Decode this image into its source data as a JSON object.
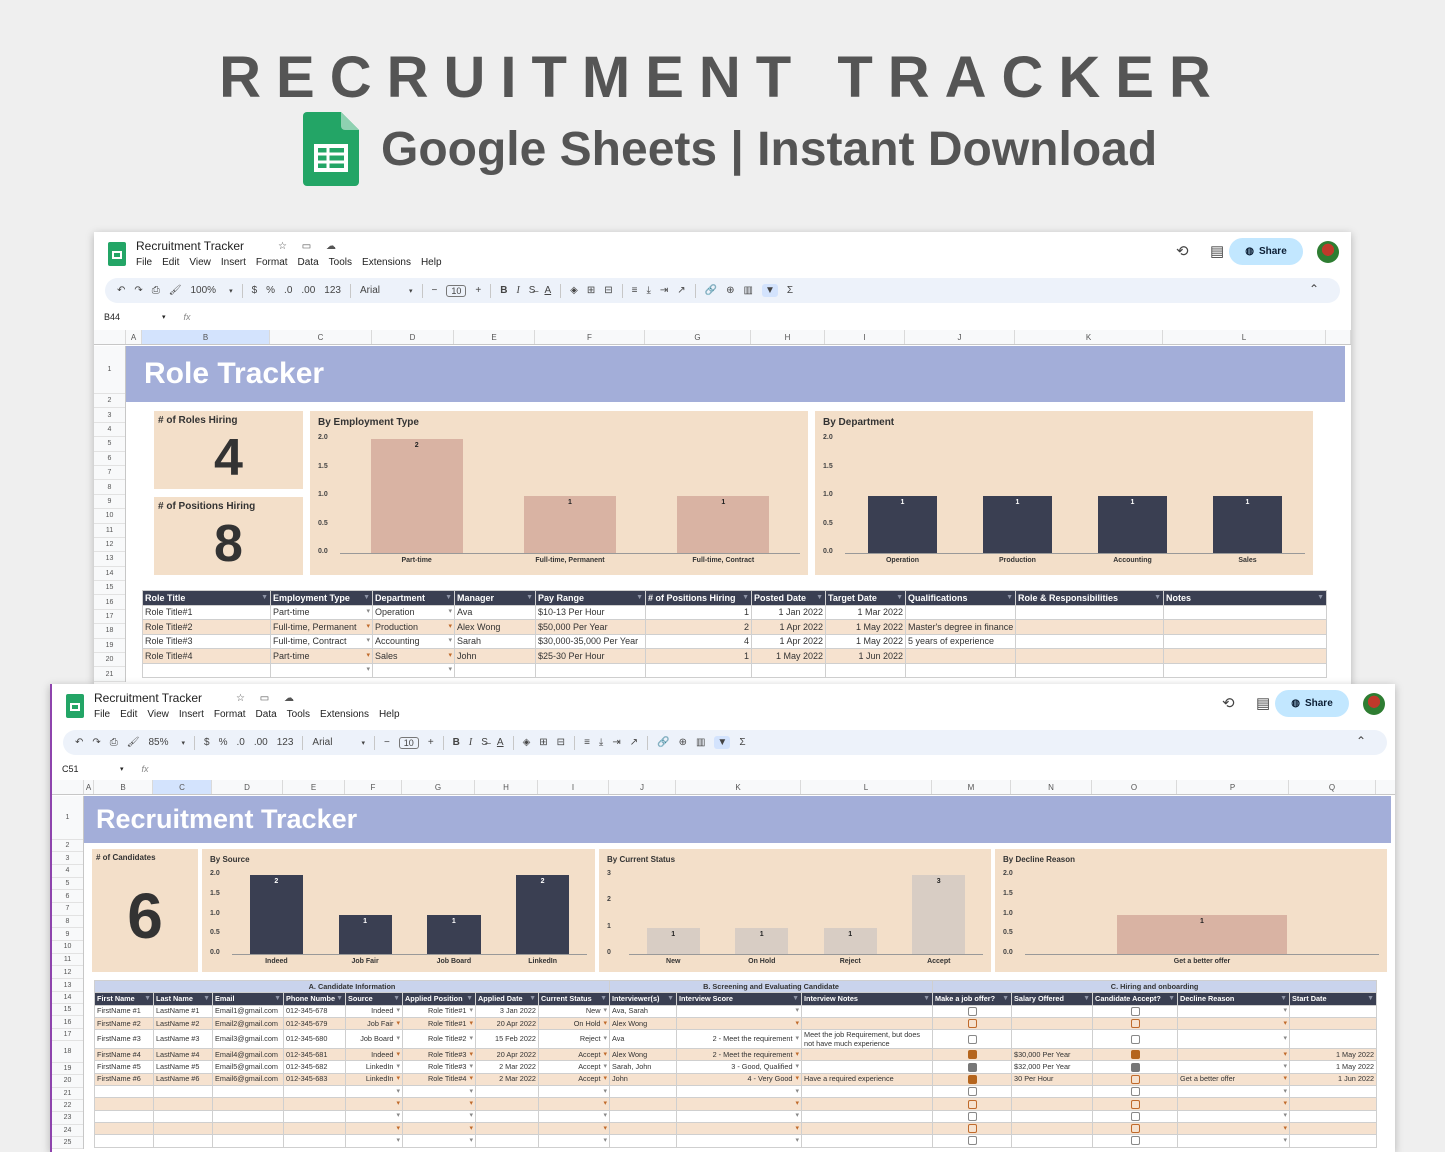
{
  "header": {
    "title": "RECRUITMENT TRACKER",
    "subtitle": "Google Sheets | Instant Download"
  },
  "colors": {
    "banner": "#a3aed9",
    "panel": "#f3dfc9",
    "header_row": "#3a3f52",
    "bar_dark": "#3a3f52",
    "bar_rose": "#d9b3a3",
    "bar_light": "#d8cdc4",
    "accent_check": "#b5651d"
  },
  "windows": [
    {
      "doc_title": "Recruitment Tracker",
      "menu": [
        "File",
        "Edit",
        "View",
        "Insert",
        "Format",
        "Data",
        "Tools",
        "Extensions",
        "Help"
      ],
      "share_label": "Share",
      "toolbar": {
        "zoom": "100%",
        "currency": "$",
        "percent": "%",
        "dec_less": ".0",
        "dec_more": ".00",
        "format": "123",
        "font": "Arial",
        "font_size": "10",
        "bold": "B",
        "italic": "I",
        "text_color": "A"
      },
      "cell_ref": "B44",
      "fx": "fx",
      "columns": [
        "A",
        "B",
        "C",
        "D",
        "E",
        "F",
        "G",
        "H",
        "I",
        "J",
        "K",
        "L"
      ],
      "sheet_title": "Role Tracker",
      "kpis": [
        {
          "label": "# of Roles Hiring",
          "value": "4"
        },
        {
          "label": "# of Positions Hiring",
          "value": "8"
        }
      ],
      "charts": [
        {
          "type": "bar",
          "title": "By Employment Type",
          "categories": [
            "Part-time",
            "Full-time, Permanent",
            "Full-time, Contract"
          ],
          "values": [
            2,
            1,
            1
          ],
          "ylim": [
            0,
            2
          ],
          "yticks": [
            "0.0",
            "0.5",
            "1.0",
            "1.5",
            "2.0"
          ],
          "color": "#d9b3a3"
        },
        {
          "type": "bar",
          "title": "By Department",
          "categories": [
            "Operation",
            "Production",
            "Accounting",
            "Sales"
          ],
          "values": [
            1,
            1,
            1,
            1
          ],
          "ylim": [
            0,
            2
          ],
          "yticks": [
            "0.0",
            "0.5",
            "1.0",
            "1.5",
            "2.0"
          ],
          "color": "#3a3f52"
        }
      ],
      "table": {
        "headers": [
          "Role Title",
          "Employment Type",
          "Department",
          "Manager",
          "Pay Range",
          "# of Positions Hiring",
          "Posted Date",
          "Target Date",
          "Qualifications",
          "Role & Responsibilities",
          "Notes"
        ],
        "rows": [
          [
            "Role Title#1",
            "Part-time",
            "Operation",
            "Ava",
            "$10-13 Per Hour",
            "1",
            "1 Jan 2022",
            "1 Mar 2022",
            "",
            "",
            ""
          ],
          [
            "Role Title#2",
            "Full-time, Permanent",
            "Production",
            "Alex Wong",
            "$50,000 Per Year",
            "2",
            "1 Apr 2022",
            "1 May 2022",
            "Master's degree in finance",
            "",
            ""
          ],
          [
            "Role Title#3",
            "Full-time, Contract",
            "Accounting",
            "Sarah",
            "$30,000-35,000 Per Year",
            "4",
            "1 Apr 2022",
            "1 May 2022",
            "5 years of experience",
            "",
            ""
          ],
          [
            "Role Title#4",
            "Part-time",
            "Sales",
            "John",
            "$25-30 Per Hour",
            "1",
            "1 May 2022",
            "1 Jun 2022",
            "",
            "",
            ""
          ]
        ]
      }
    },
    {
      "doc_title": "Recruitment Tracker",
      "menu": [
        "File",
        "Edit",
        "View",
        "Insert",
        "Format",
        "Data",
        "Tools",
        "Extensions",
        "Help"
      ],
      "share_label": "Share",
      "toolbar": {
        "zoom": "85%",
        "currency": "$",
        "percent": "%",
        "dec_less": ".0",
        "dec_more": ".00",
        "format": "123",
        "font": "Arial",
        "font_size": "10",
        "bold": "B",
        "italic": "I",
        "text_color": "A"
      },
      "cell_ref": "C51",
      "fx": "fx",
      "columns": [
        "A",
        "B",
        "C",
        "D",
        "E",
        "F",
        "G",
        "H",
        "I",
        "J",
        "K",
        "L",
        "M",
        "N",
        "O",
        "P",
        "Q"
      ],
      "sheet_title": "Recruitment Tracker",
      "kpis": [
        {
          "label": "# of Candidates",
          "value": "6"
        }
      ],
      "charts": [
        {
          "type": "bar",
          "title": "By Source",
          "categories": [
            "Indeed",
            "Job Fair",
            "Job Board",
            "LinkedIn"
          ],
          "values": [
            2,
            1,
            1,
            2
          ],
          "ylim": [
            0,
            2
          ],
          "yticks": [
            "0.0",
            "0.5",
            "1.0",
            "1.5",
            "2.0"
          ],
          "color": "#3a3f52"
        },
        {
          "type": "bar",
          "title": "By Current Status",
          "categories": [
            "New",
            "On Hold",
            "Reject",
            "Accept"
          ],
          "values": [
            1,
            1,
            1,
            3
          ],
          "ylim": [
            0,
            3
          ],
          "yticks": [
            "0",
            "1",
            "2",
            "3"
          ],
          "color": "#d8cdc4"
        },
        {
          "type": "bar",
          "title": "By Decline Reason",
          "categories": [
            "Get a better offer"
          ],
          "values": [
            1
          ],
          "ylim": [
            0,
            2
          ],
          "yticks": [
            "0.0",
            "0.5",
            "1.0",
            "1.5",
            "2.0"
          ],
          "color": "#d9b3a3"
        }
      ],
      "table": {
        "groups": [
          "A. Candidate Information",
          "B. Screening and Evaluating Candidate",
          "C. Hiring and onboarding"
        ],
        "headers": [
          "First Name",
          "Last Name",
          "Email",
          "Phone Numbe",
          "Source",
          "Applied Position",
          "Applied Date",
          "Current Status",
          "Interviewer(s)",
          "Interview Score",
          "Interview Notes",
          "Make a job offer?",
          "Salary Offered",
          "Candidate Accept?",
          "Decline Reason",
          "Start Date"
        ],
        "rows": [
          [
            "FirstName #1",
            "LastName #1",
            "Email1@gmail.com",
            "012-345-678",
            "Indeed",
            "Role Title#1",
            "3 Jan 2022",
            "New",
            "Ava, Sarah",
            "",
            "",
            false,
            "",
            false,
            "",
            ""
          ],
          [
            "FirstName #2",
            "LastName #2",
            "Email2@gmail.com",
            "012-345-679",
            "Job Fair",
            "Role Title#1",
            "20 Apr 2022",
            "On Hold",
            "Alex Wong",
            "",
            "",
            false,
            "",
            false,
            "",
            ""
          ],
          [
            "FirstName #3",
            "LastName #3",
            "Email3@gmail.com",
            "012-345-680",
            "Job Board",
            "Role Title#2",
            "15 Feb 2022",
            "Reject",
            "Ava",
            "2 - Meet the requirement",
            "Meet the job Requirement, but does not have much experience",
            false,
            "",
            false,
            "",
            ""
          ],
          [
            "FirstName #4",
            "LastName #4",
            "Email4@gmail.com",
            "012-345-681",
            "Indeed",
            "Role Title#3",
            "20 Apr 2022",
            "Accept",
            "Alex Wong",
            "2 - Meet the requirement",
            "",
            true,
            "$30,000 Per Year",
            true,
            "",
            "1 May 2022"
          ],
          [
            "FirstName #5",
            "LastName #5",
            "Email5@gmail.com",
            "012-345-682",
            "LinkedIn",
            "Role Title#3",
            "2 Mar 2022",
            "Accept",
            "Sarah, John",
            "3 - Good, Qualified",
            "",
            true,
            "$32,000 Per Year",
            true,
            "",
            "1 May 2022"
          ],
          [
            "FirstName #6",
            "LastName #6",
            "Email6@gmail.com",
            "012-345-683",
            "LinkedIn",
            "Role Title#4",
            "2 Mar 2022",
            "Accept",
            "John",
            "4 - Very Good",
            "Have a required experience",
            true,
            "30 Per Hour",
            false,
            "Get a better offer",
            "1 Jun 2022"
          ]
        ]
      }
    }
  ]
}
